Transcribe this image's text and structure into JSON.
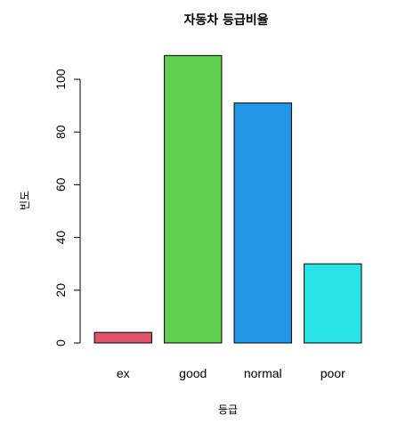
{
  "chart_data": {
    "type": "bar",
    "title": "자동차 등급비율",
    "xlabel": "등급",
    "ylabel": "빈도",
    "categories": [
      "ex",
      "good",
      "normal",
      "poor"
    ],
    "values": [
      4,
      109,
      91,
      30
    ],
    "colors": [
      "#DF536B",
      "#61D04F",
      "#2297E6",
      "#28E2E5"
    ],
    "yticks": [
      0,
      20,
      40,
      60,
      80,
      100
    ],
    "ylim": [
      0,
      109
    ],
    "grid": false,
    "legend": "none"
  }
}
